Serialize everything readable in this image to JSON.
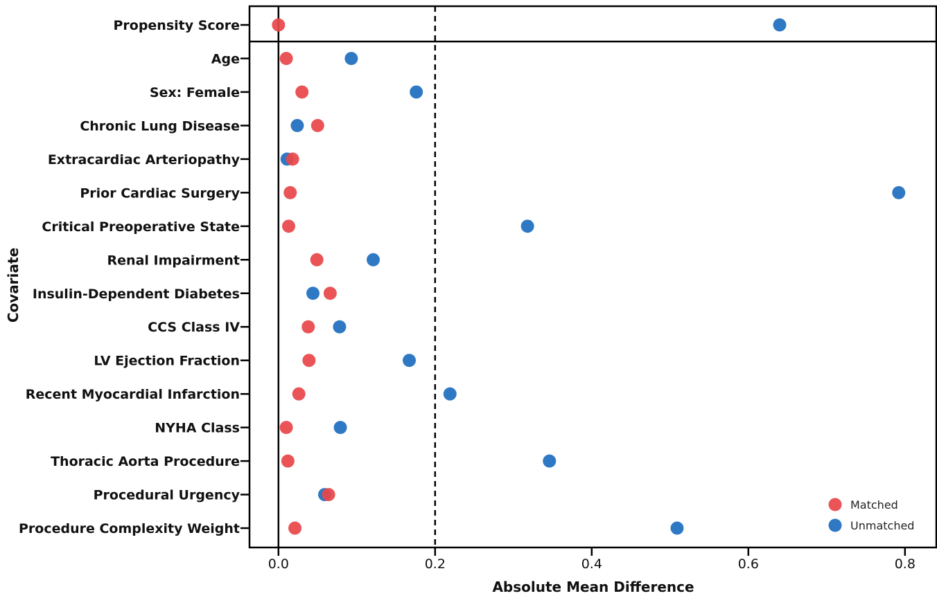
{
  "chart_data": {
    "type": "scatter",
    "xlabel": "Absolute Mean Difference",
    "ylabel": "Covariate",
    "xlim": [
      -0.037,
      0.84
    ],
    "xticks": [
      0.0,
      0.2,
      0.4,
      0.6,
      0.8
    ],
    "xtick_labels": [
      "0.0",
      "0.2",
      "0.4",
      "0.6",
      "0.8"
    ],
    "reference_lines": [
      {
        "x": 0.0,
        "style": "solid"
      },
      {
        "x": 0.2,
        "style": "dashed"
      }
    ],
    "categories": [
      "Propensity Score",
      "Age",
      "Sex: Female",
      "Chronic Lung Disease",
      "Extracardiac Arteriopathy",
      "Prior Cardiac Surgery",
      "Critical Preoperative State",
      "Renal Impairment",
      "Insulin-Dependent Diabetes",
      "CCS Class IV",
      "LV Ejection Fraction",
      "Recent Myocardial Infarction",
      "NYHA Class",
      "Thoracic Aorta Procedure",
      "Procedural Urgency",
      "Procedure Complexity Weight"
    ],
    "series": [
      {
        "name": "Matched",
        "color": "#e8474a",
        "values": [
          0.0,
          0.01,
          0.03,
          0.05,
          0.018,
          0.015,
          0.013,
          0.049,
          0.066,
          0.038,
          0.039,
          0.026,
          0.01,
          0.012,
          0.064,
          0.021
        ]
      },
      {
        "name": "Unmatched",
        "color": "#1f6fc0",
        "values": [
          0.64,
          0.093,
          0.176,
          0.024,
          0.011,
          0.792,
          0.318,
          0.121,
          0.044,
          0.078,
          0.167,
          0.219,
          0.079,
          0.346,
          0.059,
          0.509
        ]
      }
    ],
    "legend": {
      "position": "lower-right",
      "entries": [
        "Matched",
        "Unmatched"
      ]
    },
    "grid": false
  }
}
